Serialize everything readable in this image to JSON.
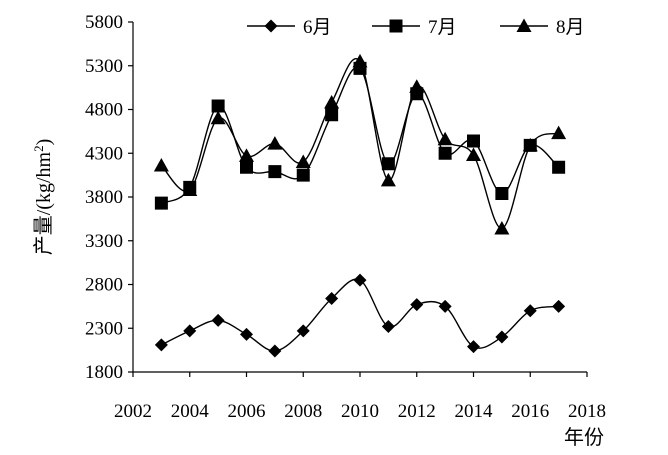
{
  "chart_data": {
    "type": "line",
    "title": "",
    "xlabel": "年份",
    "ylabel": "产量/(kg/hm²)",
    "ylabel_text": "产量/(kg/hm",
    "ylabel_sup": "2",
    "ylabel_tail": ")",
    "xlim": [
      2002,
      2018
    ],
    "ylim": [
      1800,
      5800
    ],
    "x_ticks": [
      2002,
      2004,
      2006,
      2008,
      2010,
      2012,
      2014,
      2016,
      2018
    ],
    "y_ticks": [
      1800,
      2300,
      2800,
      3300,
      3800,
      4300,
      4800,
      5300,
      5800
    ],
    "x_tick_labels": [
      "2002",
      "2004",
      "2006",
      "2008",
      "2010",
      "2012",
      "2014",
      "2016",
      "2018"
    ],
    "y_tick_labels": [
      "1800",
      "2300",
      "2800",
      "3300",
      "3800",
      "4300",
      "4800",
      "5300",
      "5800"
    ],
    "grid": false,
    "legend_position": "top",
    "x": [
      2003,
      2004,
      2005,
      2006,
      2007,
      2008,
      2009,
      2010,
      2011,
      2012,
      2013,
      2014,
      2015,
      2016,
      2017
    ],
    "series": [
      {
        "name": "6月",
        "marker": "diamond",
        "values": [
          2110,
          2270,
          2390,
          2230,
          2040,
          2270,
          2640,
          2850,
          2320,
          2570,
          2550,
          2090,
          2200,
          2500,
          2550
        ]
      },
      {
        "name": "7月",
        "marker": "square",
        "values": [
          3730,
          3910,
          4840,
          4140,
          4090,
          4050,
          4740,
          5270,
          4180,
          4980,
          4300,
          4440,
          3840,
          4390,
          4140
        ]
      },
      {
        "name": "8月",
        "marker": "triangle",
        "values": [
          4160,
          3880,
          4700,
          4270,
          4410,
          4200,
          4880,
          5350,
          3990,
          5060,
          4460,
          4280,
          3440,
          4390,
          4530
        ]
      }
    ]
  }
}
